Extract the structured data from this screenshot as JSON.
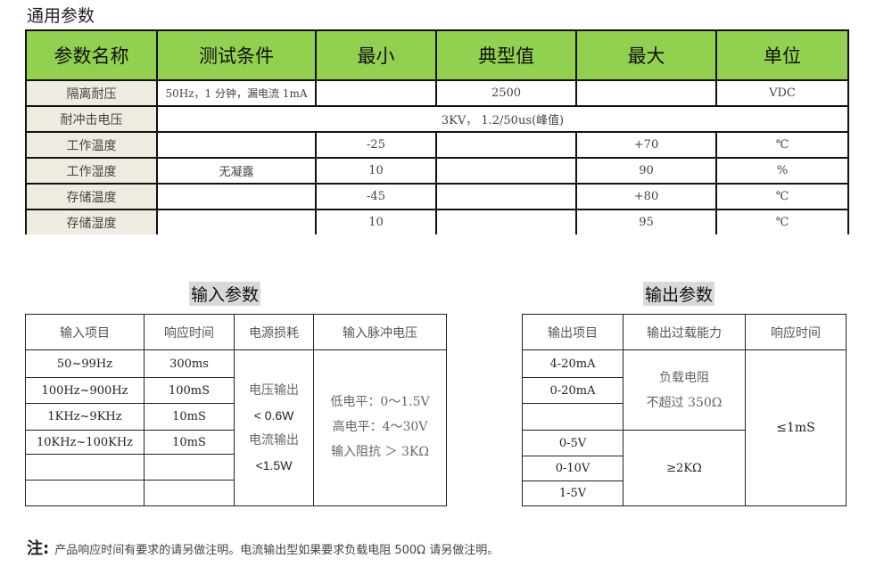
{
  "general": {
    "title": "通用参数",
    "headers": [
      "参数名称",
      "测试条件",
      "最小",
      "典型值",
      "最大",
      "单位"
    ],
    "rows": [
      {
        "name": "隔离耐压",
        "condition": "50Hz，1 分钟，漏电流 1mA",
        "min": "",
        "typ": "2500",
        "max": "",
        "unit": "VDC"
      },
      {
        "name": "耐冲击电压",
        "merged": "3KV，  1.2/50us(峰值)"
      },
      {
        "name": "工作温度",
        "condition": "",
        "min": "-25",
        "typ": "",
        "max": "+70",
        "unit": "℃"
      },
      {
        "name": "工作湿度",
        "condition": "无凝露",
        "min": "10",
        "typ": "",
        "max": "90",
        "unit": "%"
      },
      {
        "name": "存储温度",
        "condition": "",
        "min": "-45",
        "typ": "",
        "max": "+80",
        "unit": "℃"
      },
      {
        "name": "存储湿度",
        "condition": "",
        "min": "10",
        "typ": "",
        "max": "95",
        "unit": "℃"
      }
    ],
    "header_color": "#92d050",
    "name_cell_color": "#eeece1"
  },
  "input": {
    "title": "输入参数",
    "headers": [
      "输入项目",
      "响应时间",
      "电源损耗",
      "输入脉冲电压"
    ],
    "items": [
      "50~99Hz",
      "100Hz~900Hz",
      "1KHz~9KHz",
      "10KHz~100KHz",
      "",
      ""
    ],
    "response": [
      "300ms",
      "100mS",
      "10mS",
      "10mS",
      "",
      ""
    ],
    "power": [
      "电压输出",
      "< 0.6W",
      "电流输出",
      "<1.5W"
    ],
    "pulse": [
      "低电平：0～1.5V",
      "高电平：4～30V",
      "输入阻抗 ＞ 3KΩ"
    ]
  },
  "output": {
    "title": "输出参数",
    "headers": [
      "输出项目",
      "输出过载能力",
      "响应时间"
    ],
    "items": [
      "4-20mA",
      "0-20mA",
      "",
      "0-5V",
      "0-10V",
      "1-5V"
    ],
    "current_load": [
      "负载电阻",
      "不超过 350Ω"
    ],
    "voltage_load": "≥2KΩ",
    "response": "≤1mS"
  },
  "note": {
    "label": "注:",
    "text": "产品响应时间有要求的请另做注明。电流输出型如果要求负载电阻 500Ω 请另做注明。"
  }
}
